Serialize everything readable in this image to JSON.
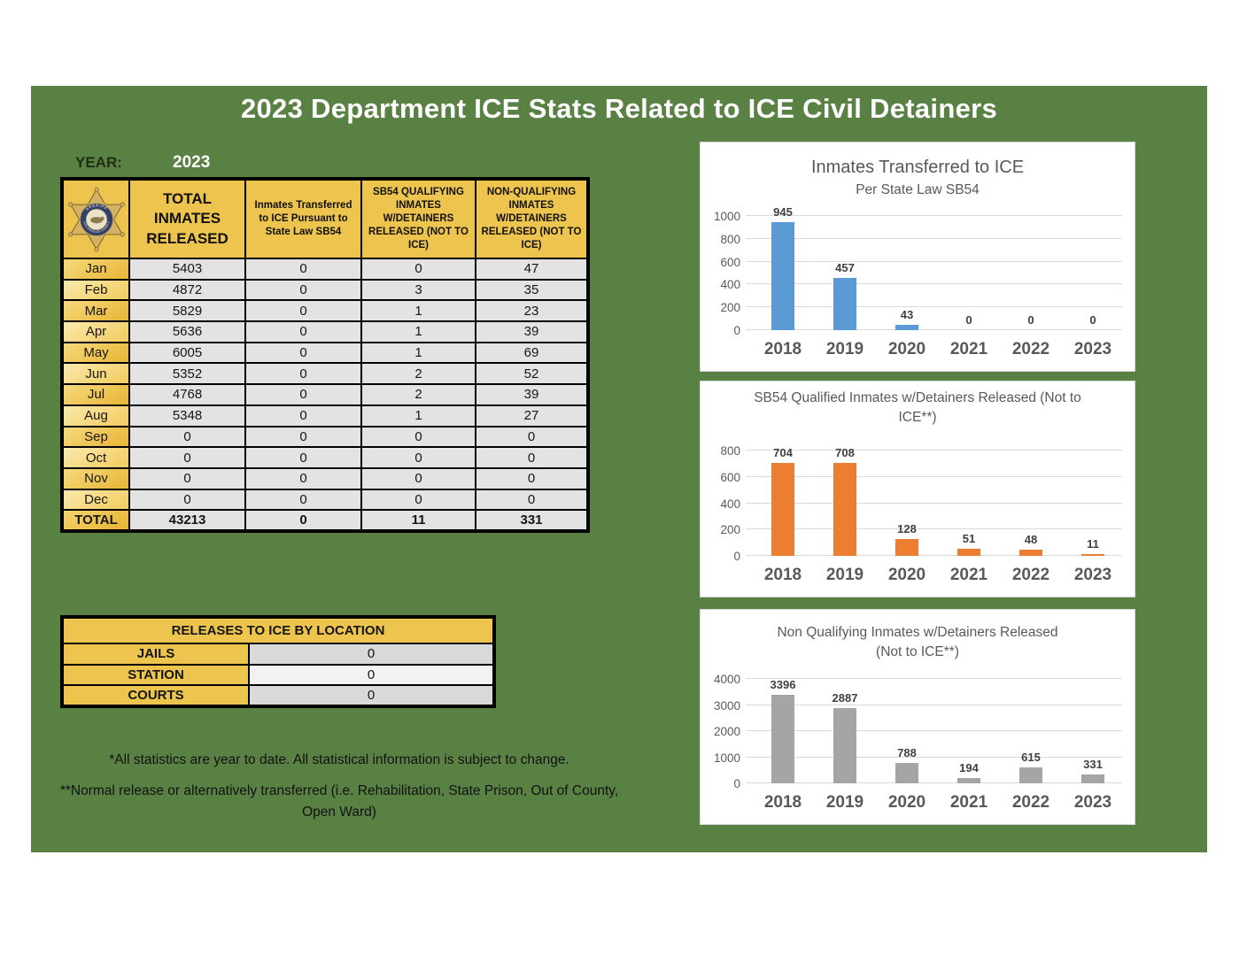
{
  "title": "2023 Department ICE Stats Related to ICE Civil Detainers",
  "year": {
    "label": "YEAR:",
    "value": "2023"
  },
  "badge": {
    "top_text": "SHERIFF",
    "bottom_text": "LOS ANGELES COUNTY"
  },
  "main_table": {
    "headers": [
      "TOTAL INMATES RELEASED",
      "Inmates Transferred to ICE Pursuant to State Law SB54",
      "SB54 QUALIFYING INMATES W/DETAINERS RELEASED (NOT TO ICE)",
      "NON-QUALIFYING INMATES W/DETAINERS RELEASED (NOT TO ICE)"
    ],
    "rows": [
      {
        "month": "Jan",
        "values": [
          "5403",
          "0",
          "0",
          "47"
        ]
      },
      {
        "month": "Feb",
        "values": [
          "4872",
          "0",
          "3",
          "35"
        ]
      },
      {
        "month": "Mar",
        "values": [
          "5829",
          "0",
          "1",
          "23"
        ]
      },
      {
        "month": "Apr",
        "values": [
          "5636",
          "0",
          "1",
          "39"
        ]
      },
      {
        "month": "May",
        "values": [
          "6005",
          "0",
          "1",
          "69"
        ]
      },
      {
        "month": "Jun",
        "values": [
          "5352",
          "0",
          "2",
          "52"
        ]
      },
      {
        "month": "Jul",
        "values": [
          "4768",
          "0",
          "2",
          "39"
        ]
      },
      {
        "month": "Aug",
        "values": [
          "5348",
          "0",
          "1",
          "27"
        ]
      },
      {
        "month": "Sep",
        "values": [
          "0",
          "0",
          "0",
          "0"
        ]
      },
      {
        "month": "Oct",
        "values": [
          "0",
          "0",
          "0",
          "0"
        ]
      },
      {
        "month": "Nov",
        "values": [
          "0",
          "0",
          "0",
          "0"
        ]
      },
      {
        "month": "Dec",
        "values": [
          "0",
          "0",
          "0",
          "0"
        ]
      }
    ],
    "total": {
      "label": "TOTAL",
      "values": [
        "43213",
        "0",
        "11",
        "331"
      ]
    }
  },
  "releases_table": {
    "title": "RELEASES TO ICE BY LOCATION",
    "rows": [
      {
        "label": "JAILS",
        "value": "0"
      },
      {
        "label": "STATION",
        "value": "0"
      },
      {
        "label": "COURTS",
        "value": "0"
      }
    ]
  },
  "footnotes": [
    "*All statistics are year to date.  All statistical information is subject to change.",
    "**Normal release or alternatively transferred (i.e. Rehabilitation, State Prison, Out of County, Open Ward)"
  ],
  "chart_data": [
    {
      "type": "bar",
      "title_lines": [
        "Inmates Transferred to ICE",
        "Per State Law SB54"
      ],
      "title_sizes": [
        20,
        15.5
      ],
      "categories": [
        "2018",
        "2019",
        "2020",
        "2021",
        "2022",
        "2023"
      ],
      "values": [
        945,
        457,
        43,
        0,
        0,
        0
      ],
      "ylim": [
        0,
        1000
      ],
      "ytick_step": 200,
      "bar_color": "#5b9bd5",
      "grid": true,
      "data_labels": true,
      "legend": "none"
    },
    {
      "type": "bar",
      "title_lines": [
        "SB54 Qualified Inmates w/Detainers Released    (Not to",
        "ICE**)"
      ],
      "title_sizes": [
        15.5,
        15.5
      ],
      "categories": [
        "2018",
        "2019",
        "2020",
        "2021",
        "2022",
        "2023"
      ],
      "values": [
        704,
        708,
        128,
        51,
        48,
        11
      ],
      "ylim": [
        0,
        800
      ],
      "ytick_step": 200,
      "bar_color": "#ed7d31",
      "grid": true,
      "data_labels": true,
      "legend": "none"
    },
    {
      "type": "bar",
      "title_lines": [
        "Non Qualifying Inmates w/Detainers Released",
        "(Not to ICE**)"
      ],
      "title_sizes": [
        15.5,
        15.5
      ],
      "categories": [
        "2018",
        "2019",
        "2020",
        "2021",
        "2022",
        "2023"
      ],
      "values": [
        3396,
        2887,
        788,
        194,
        615,
        331
      ],
      "ylim": [
        0,
        4000
      ],
      "ytick_step": 1000,
      "bar_color": "#a5a5a5",
      "grid": true,
      "data_labels": true,
      "legend": "none"
    }
  ],
  "colors": {
    "background_green": "#5a8144",
    "table_gold": "#ecc44e",
    "table_gold_light": "#f5d97c",
    "cell_gray": "#e3e3e3",
    "bar_blue": "#5b9bd5",
    "bar_orange": "#ed7d31",
    "bar_gray": "#a5a5a5",
    "axis_text": "#595959",
    "value_label_text": "#404040"
  }
}
